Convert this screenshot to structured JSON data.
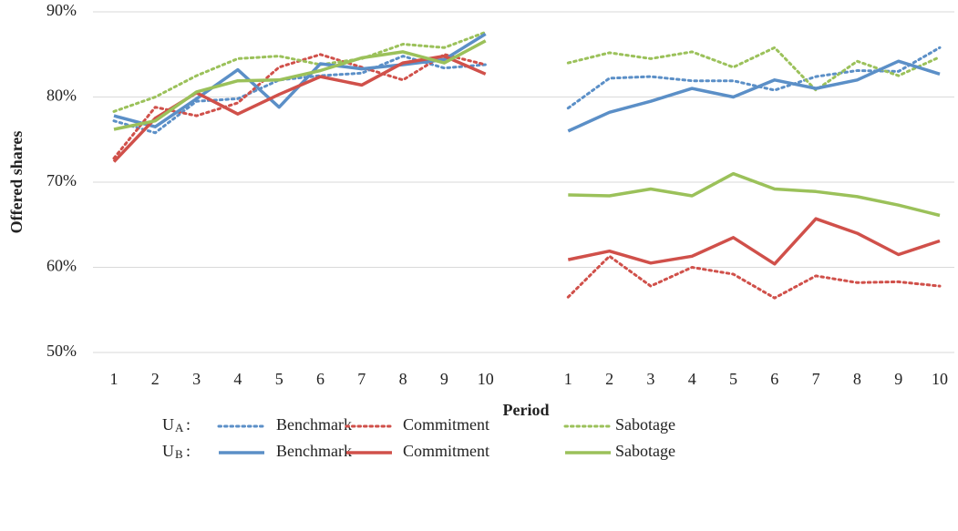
{
  "chart_data": {
    "type": "line",
    "y_label": "Offered shares",
    "x_label": "Period",
    "categories": [
      "1",
      "2",
      "3",
      "4",
      "5",
      "6",
      "7",
      "8",
      "9",
      "10",
      null,
      "1",
      "2",
      "3",
      "4",
      "5",
      "6",
      "7",
      "8",
      "9",
      "10"
    ],
    "ylim": [
      50,
      90
    ],
    "yticks": [
      {
        "value": 50,
        "label": "50%"
      },
      {
        "value": 60,
        "label": "60%"
      },
      {
        "value": 70,
        "label": "70%"
      },
      {
        "value": 80,
        "label": "80%"
      },
      {
        "value": 90,
        "label": "90%"
      }
    ],
    "grid": true,
    "legend_groups": [
      {
        "symbol": "U",
        "subscript": "A",
        "separator": ":"
      },
      {
        "symbol": "U",
        "subscript": "B",
        "separator": ":"
      }
    ],
    "series": [
      {
        "name": "Benchmark",
        "group": 0,
        "dash": "dotted",
        "color": "#5b8fc7",
        "values": [
          77.2,
          75.8,
          79.5,
          79.8,
          82.0,
          82.5,
          82.8,
          84.8,
          83.4,
          83.8,
          null,
          78.7,
          82.2,
          82.4,
          81.9,
          81.9,
          80.8,
          82.4,
          83.1,
          83.0,
          85.8
        ]
      },
      {
        "name": "Commitment",
        "group": 0,
        "dash": "dotted",
        "color": "#d0504a",
        "values": [
          72.8,
          78.8,
          77.8,
          79.3,
          83.5,
          85.0,
          83.5,
          82.0,
          85.0,
          83.8,
          null,
          56.5,
          61.3,
          57.8,
          60.0,
          59.2,
          56.4,
          59.0,
          58.2,
          58.3,
          57.8
        ]
      },
      {
        "name": "Sabotage",
        "group": 0,
        "dash": "dotted",
        "color": "#9bc15a",
        "values": [
          78.3,
          80.0,
          82.5,
          84.5,
          84.8,
          83.8,
          84.5,
          86.2,
          85.8,
          87.6,
          null,
          84.0,
          85.2,
          84.5,
          85.3,
          83.5,
          85.8,
          80.8,
          84.2,
          82.5,
          84.7
        ]
      },
      {
        "name": "Benchmark",
        "group": 1,
        "dash": "solid",
        "color": "#5b8fc7",
        "values": [
          77.8,
          76.5,
          79.8,
          83.2,
          78.8,
          83.9,
          83.3,
          83.8,
          84.4,
          87.4,
          null,
          76.0,
          78.2,
          79.5,
          81.0,
          80.0,
          82.0,
          81.0,
          82.0,
          84.2,
          82.7
        ]
      },
      {
        "name": "Commitment",
        "group": 1,
        "dash": "solid",
        "color": "#d0504a",
        "values": [
          72.4,
          77.5,
          80.5,
          78.0,
          80.3,
          82.4,
          81.4,
          84.0,
          84.8,
          82.7,
          null,
          60.9,
          61.9,
          60.5,
          61.3,
          63.5,
          60.4,
          65.7,
          64.0,
          61.5,
          63.1
        ]
      },
      {
        "name": "Sabotage",
        "group": 1,
        "dash": "solid",
        "color": "#9bc15a",
        "values": [
          76.2,
          77.2,
          80.6,
          81.9,
          82.0,
          83.1,
          84.6,
          85.3,
          84.0,
          86.6,
          null,
          68.5,
          68.4,
          69.2,
          68.4,
          71.0,
          69.2,
          68.9,
          68.3,
          67.3,
          66.1
        ]
      }
    ]
  }
}
